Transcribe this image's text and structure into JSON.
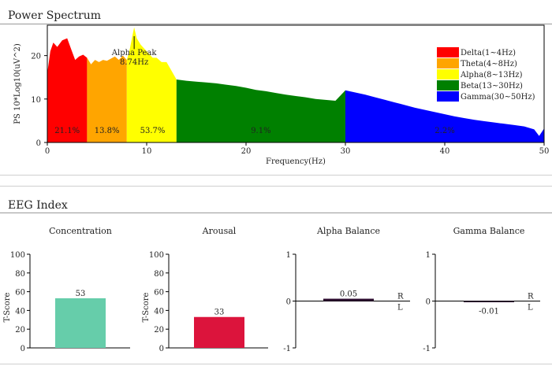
{
  "power_spectrum": {
    "section_title": "Power Spectrum",
    "annotation": {
      "line1": "Alpha Peak",
      "line2": "8.74Hz"
    }
  },
  "eeg_index": {
    "section_title": "EEG Index"
  },
  "chart_data": [
    {
      "type": "area",
      "title": "Power Spectrum",
      "xlabel": "Frequency(Hz)",
      "ylabel": "PS 10*Log10(uV^2)",
      "xlim": [
        0,
        50
      ],
      "ylim": [
        0,
        27
      ],
      "xticks": [
        0,
        10,
        20,
        30,
        40,
        50
      ],
      "yticks": [
        0,
        10,
        20
      ],
      "alpha_peak_hz": 8.74,
      "bands": [
        {
          "name": "Delta(1~4Hz)",
          "from": 0,
          "to": 4,
          "color": "#ff0000",
          "percent": "21.1%",
          "label_x": 2
        },
        {
          "name": "Theta(4~8Hz)",
          "from": 4,
          "to": 8,
          "color": "#ffa500",
          "percent": "13.8%",
          "label_x": 6
        },
        {
          "name": "Alpha(8~13Hz)",
          "from": 8,
          "to": 13,
          "color": "#ffff00",
          "percent": "53.7%",
          "label_x": 10.6
        },
        {
          "name": "Beta(13~30Hz)",
          "from": 13,
          "to": 30,
          "color": "#008000",
          "percent": "9.1%",
          "label_x": 21.5
        },
        {
          "name": "Gamma(30~50Hz)",
          "from": 30,
          "to": 50,
          "color": "#0000ff",
          "percent": "2.2%",
          "label_x": 40
        }
      ],
      "spectrum": {
        "x": [
          0,
          0.3,
          0.6,
          1.0,
          1.5,
          2.0,
          2.4,
          2.8,
          3.2,
          3.6,
          4.0,
          4.4,
          4.8,
          5.2,
          5.6,
          6.0,
          6.4,
          6.8,
          7.2,
          7.6,
          8.0,
          8.3,
          8.6,
          8.74,
          9.0,
          9.4,
          9.8,
          10.2,
          10.6,
          11.0,
          11.5,
          12.0,
          12.5,
          13.0,
          14,
          15,
          16,
          17,
          18,
          19,
          20,
          21,
          22,
          23,
          24,
          25,
          26,
          27,
          28,
          29,
          30,
          31,
          32,
          33,
          34,
          35,
          36,
          37,
          38,
          39,
          40,
          41,
          42,
          43,
          44,
          45,
          46,
          47,
          48,
          49,
          49.5,
          50
        ],
        "y": [
          16,
          21,
          23,
          22,
          23.5,
          24,
          21.5,
          19,
          19.8,
          20.2,
          19.5,
          18,
          19,
          18.5,
          19,
          18.8,
          19.3,
          19.8,
          19,
          20,
          19,
          21.5,
          25,
          26.5,
          24,
          22.5,
          21.5,
          20.5,
          19.5,
          19.5,
          18.5,
          18.5,
          16.5,
          14.5,
          14.2,
          14.0,
          13.8,
          13.6,
          13.3,
          13.0,
          12.6,
          12.1,
          11.8,
          11.4,
          11.0,
          10.7,
          10.4,
          10.0,
          9.8,
          9.6,
          12,
          11.5,
          11.0,
          10.4,
          9.8,
          9.2,
          8.6,
          8.0,
          7.5,
          7.0,
          6.5,
          6.0,
          5.6,
          5.2,
          4.9,
          4.6,
          4.3,
          4.0,
          3.7,
          3.0,
          1.5,
          3.2
        ]
      }
    },
    {
      "type": "bar",
      "title": "Concentration",
      "ylabel": "T-Score",
      "ylim": [
        0,
        100
      ],
      "yticks": [
        0,
        20,
        40,
        60,
        80,
        100
      ],
      "value": 53,
      "value_label": "53",
      "color": "#66cdaa"
    },
    {
      "type": "bar",
      "title": "Arousal",
      "ylabel": "T-Score",
      "ylim": [
        0,
        100
      ],
      "yticks": [
        0,
        20,
        40,
        60,
        80,
        100
      ],
      "value": 33,
      "value_label": "33",
      "color": "#dc143c"
    },
    {
      "type": "bar",
      "title": "Alpha Balance",
      "ylim": [
        -1,
        1
      ],
      "yticks": [
        -1,
        0,
        1
      ],
      "value": 0.05,
      "value_label": "0.05",
      "color": "#2b0a2e",
      "side_labels": [
        "R",
        "L"
      ]
    },
    {
      "type": "bar",
      "title": "Gamma Balance",
      "ylim": [
        -1,
        1
      ],
      "yticks": [
        -1,
        0,
        1
      ],
      "value": -0.01,
      "value_label": "-0.01",
      "color": "#2b0a2e",
      "side_labels": [
        "R",
        "L"
      ]
    }
  ]
}
